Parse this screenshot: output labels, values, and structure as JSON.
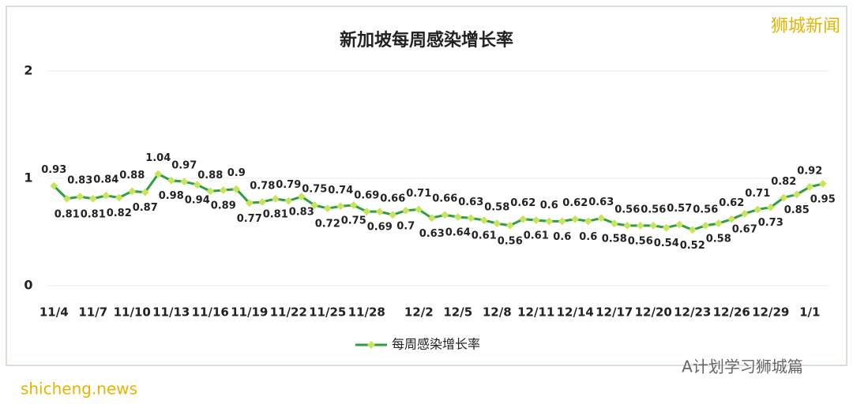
{
  "chart_data": {
    "type": "line",
    "title": "新加坡每周感染增长率",
    "categories": [
      "11/4",
      null,
      null,
      "11/7",
      null,
      null,
      "11/10",
      null,
      null,
      "11/13",
      null,
      null,
      "11/16",
      null,
      null,
      "11/19",
      null,
      null,
      "11/22",
      null,
      null,
      "11/25",
      null,
      null,
      "11/28",
      null,
      null,
      null,
      "12/2",
      null,
      null,
      "12/5",
      null,
      null,
      "12/8",
      null,
      null,
      "12/11",
      null,
      null,
      "12/14",
      null,
      null,
      "12/17",
      null,
      null,
      "12/20",
      null,
      null,
      "12/23",
      null,
      null,
      "12/26",
      null,
      null,
      "12/29",
      null,
      null,
      "1/1",
      null
    ],
    "series": [
      {
        "name": "每周感染增长率",
        "color": "#2e9e3e",
        "marker_color": "#c8e35c",
        "values": [
          0.93,
          0.81,
          0.83,
          0.81,
          0.84,
          0.82,
          0.88,
          0.87,
          1.04,
          0.98,
          0.97,
          0.94,
          0.88,
          0.89,
          0.9,
          0.77,
          0.78,
          0.81,
          0.79,
          0.83,
          0.75,
          0.72,
          0.74,
          0.75,
          0.69,
          0.69,
          0.66,
          0.7,
          0.71,
          0.63,
          0.66,
          0.64,
          0.63,
          0.61,
          0.58,
          0.56,
          0.62,
          0.61,
          0.6,
          0.6,
          0.62,
          0.6,
          0.63,
          0.58,
          0.56,
          0.56,
          0.56,
          0.54,
          0.57,
          0.52,
          0.56,
          0.58,
          0.62,
          0.67,
          0.71,
          0.73,
          0.82,
          0.85,
          0.92,
          0.95
        ]
      }
    ],
    "ylim": [
      0,
      2
    ],
    "yticks": [
      0,
      1,
      2
    ],
    "grid": true,
    "legend": "bottom"
  },
  "watermarks": {
    "brand": "狮城新闻",
    "wechat": "A计划学习狮城篇",
    "site": "shicheng.news"
  }
}
